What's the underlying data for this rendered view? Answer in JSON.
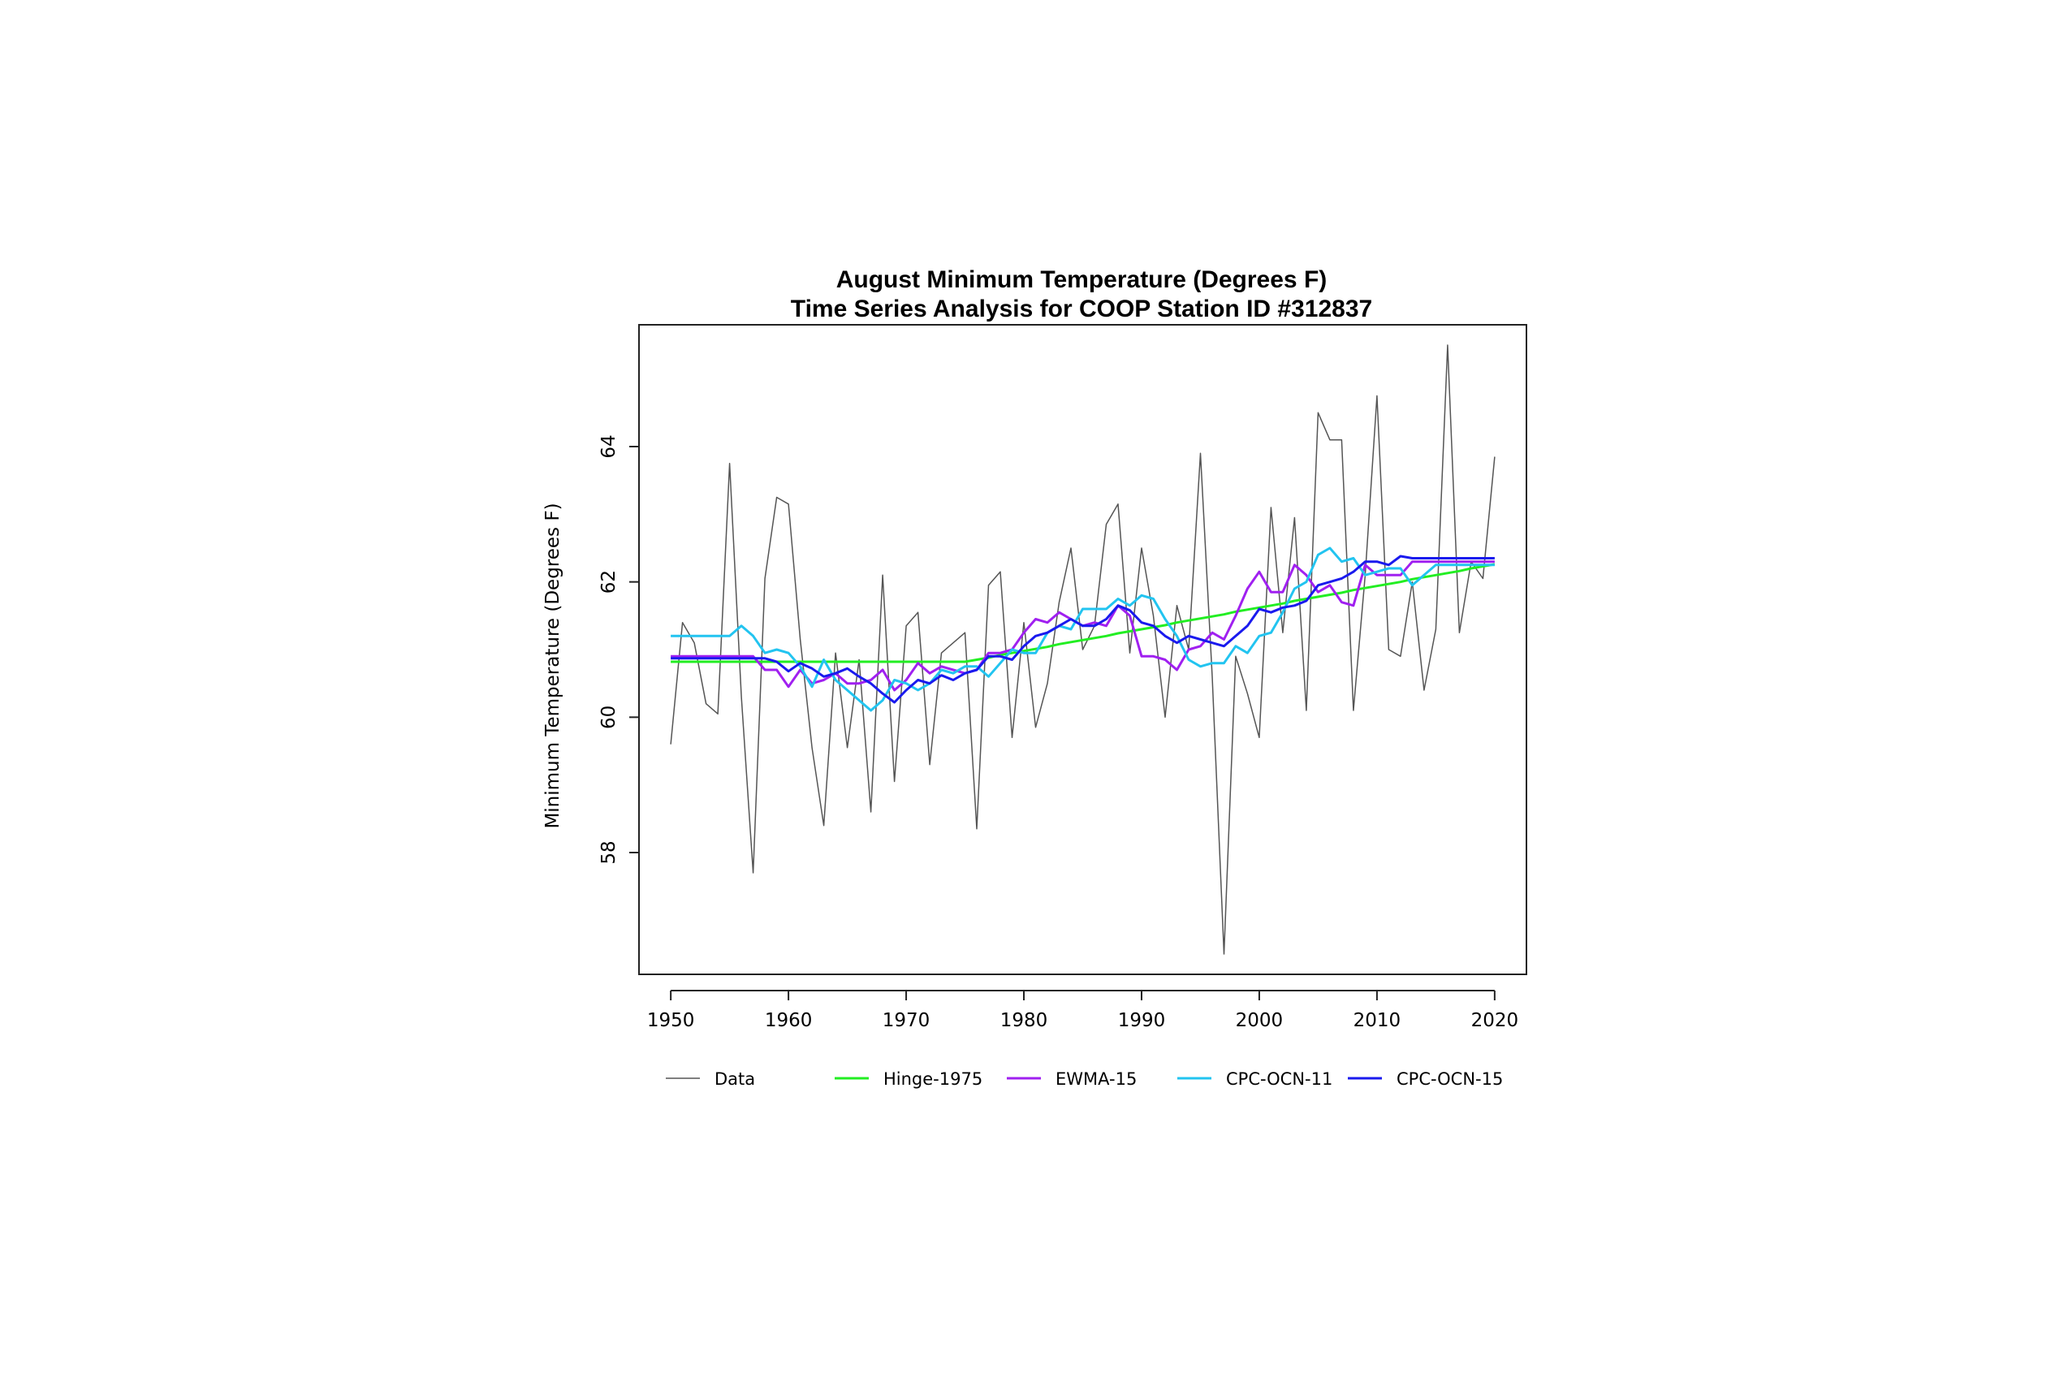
{
  "chart_data": {
    "type": "line",
    "title": "August Minimum Temperature (Degrees F)",
    "subtitle": "Time Series Analysis for COOP Station ID #312837",
    "xlabel": "",
    "ylabel": "Minimum Temperature (Degrees F)",
    "xlim": [
      1947.3,
      2022.7
    ],
    "ylim": [
      56.2,
      65.8
    ],
    "xticks": [
      1950,
      1960,
      1970,
      1980,
      1990,
      2000,
      2010,
      2020
    ],
    "yticks": [
      58,
      60,
      62,
      64
    ],
    "grid": false,
    "legend_position": "bottom",
    "x": [
      1950,
      1951,
      1952,
      1953,
      1954,
      1955,
      1956,
      1957,
      1958,
      1959,
      1960,
      1961,
      1962,
      1963,
      1964,
      1965,
      1966,
      1967,
      1968,
      1969,
      1970,
      1971,
      1972,
      1973,
      1974,
      1975,
      1976,
      1977,
      1978,
      1979,
      1980,
      1981,
      1982,
      1983,
      1984,
      1985,
      1986,
      1987,
      1988,
      1989,
      1990,
      1991,
      1992,
      1993,
      1994,
      1995,
      1996,
      1997,
      1998,
      1999,
      2000,
      2001,
      2002,
      2003,
      2004,
      2005,
      2006,
      2007,
      2008,
      2009,
      2010,
      2011,
      2012,
      2013,
      2014,
      2015,
      2016,
      2017,
      2018,
      2019,
      2020
    ],
    "series": [
      {
        "name": "Data",
        "color": "#555555",
        "width": 1.5,
        "values": [
          59.6,
          61.4,
          61.1,
          60.2,
          60.05,
          63.75,
          60.3,
          57.7,
          62.05,
          63.25,
          63.15,
          61.15,
          59.55,
          58.4,
          60.95,
          59.55,
          60.85,
          58.6,
          62.1,
          59.05,
          61.35,
          61.55,
          59.3,
          60.95,
          61.1,
          61.25,
          58.35,
          61.95,
          62.15,
          59.7,
          61.4,
          59.85,
          60.5,
          61.7,
          62.5,
          61.0,
          61.35,
          62.85,
          63.15,
          60.95,
          62.5,
          61.5,
          60.0,
          61.65,
          61.0,
          63.9,
          60.6,
          56.5,
          60.9,
          60.35,
          59.7,
          63.1,
          61.25,
          62.95,
          60.1,
          64.5,
          64.1,
          64.1,
          60.1,
          62.1,
          64.75,
          61.0,
          60.9,
          62.0,
          60.4,
          61.3,
          65.5,
          61.25,
          62.3,
          62.05,
          63.85
        ]
      },
      {
        "name": "Hinge-1975",
        "color": "#22ee22",
        "width": 3,
        "values": [
          60.82,
          60.82,
          60.82,
          60.82,
          60.82,
          60.82,
          60.82,
          60.82,
          60.82,
          60.82,
          60.82,
          60.82,
          60.82,
          60.82,
          60.82,
          60.82,
          60.82,
          60.82,
          60.82,
          60.82,
          60.82,
          60.82,
          60.82,
          60.82,
          60.82,
          60.82,
          60.85,
          60.88,
          60.92,
          60.95,
          60.98,
          61.01,
          61.04,
          61.08,
          61.11,
          61.14,
          61.17,
          61.2,
          61.24,
          61.27,
          61.3,
          61.33,
          61.36,
          61.4,
          61.43,
          61.46,
          61.49,
          61.52,
          61.56,
          61.59,
          61.62,
          61.65,
          61.68,
          61.72,
          61.75,
          61.78,
          61.81,
          61.84,
          61.88,
          61.91,
          61.94,
          61.97,
          62.0,
          62.04,
          62.07,
          62.1,
          62.13,
          62.16,
          62.2,
          62.23,
          62.26
        ]
      },
      {
        "name": "EWMA-15",
        "color": "#a020f0",
        "width": 3,
        "values": [
          60.9,
          60.9,
          60.9,
          60.9,
          60.9,
          60.9,
          60.9,
          60.9,
          60.7,
          60.7,
          60.45,
          60.7,
          60.5,
          60.55,
          60.65,
          60.5,
          60.5,
          60.55,
          60.7,
          60.4,
          60.55,
          60.8,
          60.65,
          60.75,
          60.7,
          60.65,
          60.7,
          60.95,
          60.95,
          61.0,
          61.25,
          61.45,
          61.4,
          61.55,
          61.45,
          61.35,
          61.4,
          61.35,
          61.65,
          61.5,
          60.9,
          60.9,
          60.85,
          60.7,
          61.0,
          61.05,
          61.25,
          61.15,
          61.5,
          61.9,
          62.15,
          61.85,
          61.85,
          62.25,
          62.1,
          61.85,
          61.95,
          61.7,
          61.65,
          62.25,
          62.1,
          62.1,
          62.1,
          62.3,
          62.3,
          62.3,
          62.3,
          62.3,
          62.3,
          62.3,
          62.3
        ]
      },
      {
        "name": "CPC-OCN-11",
        "color": "#22c4f0",
        "width": 3,
        "values": [
          61.2,
          61.2,
          61.2,
          61.2,
          61.2,
          61.2,
          61.35,
          61.2,
          60.95,
          61.0,
          60.95,
          60.75,
          60.45,
          60.85,
          60.55,
          60.4,
          60.25,
          60.1,
          60.25,
          60.55,
          60.5,
          60.4,
          60.5,
          60.7,
          60.65,
          60.75,
          60.75,
          60.6,
          60.8,
          61.0,
          60.95,
          60.95,
          61.25,
          61.35,
          61.3,
          61.6,
          61.6,
          61.6,
          61.75,
          61.65,
          61.8,
          61.75,
          61.45,
          61.2,
          60.85,
          60.75,
          60.8,
          60.8,
          61.05,
          60.95,
          61.2,
          61.25,
          61.55,
          61.9,
          62.0,
          62.4,
          62.5,
          62.3,
          62.35,
          62.1,
          62.15,
          62.2,
          62.2,
          61.95,
          62.1,
          62.25,
          62.25,
          62.25,
          62.25,
          62.25,
          62.25
        ]
      },
      {
        "name": "CPC-OCN-15",
        "color": "#1a1aee",
        "width": 3,
        "values": [
          60.87,
          60.87,
          60.87,
          60.87,
          60.87,
          60.87,
          60.87,
          60.87,
          60.87,
          60.82,
          60.68,
          60.8,
          60.72,
          60.6,
          60.65,
          60.72,
          60.6,
          60.5,
          60.35,
          60.22,
          60.4,
          60.55,
          60.5,
          60.62,
          60.55,
          60.65,
          60.7,
          60.9,
          60.9,
          60.85,
          61.05,
          61.2,
          61.25,
          61.35,
          61.45,
          61.35,
          61.35,
          61.45,
          61.65,
          61.58,
          61.4,
          61.35,
          61.2,
          61.1,
          61.2,
          61.15,
          61.1,
          61.05,
          61.2,
          61.35,
          61.6,
          61.55,
          61.62,
          61.65,
          61.72,
          61.95,
          62.0,
          62.05,
          62.15,
          62.3,
          62.3,
          62.25,
          62.38,
          62.35,
          62.35,
          62.35,
          62.35,
          62.35,
          62.35,
          62.35,
          62.35
        ]
      }
    ]
  }
}
